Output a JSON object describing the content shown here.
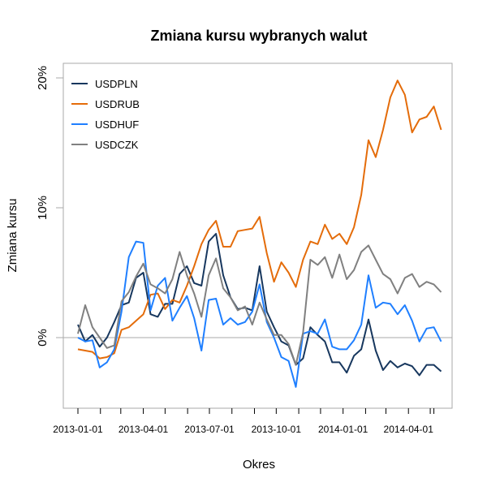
{
  "chart_data": {
    "type": "line",
    "title": "Zmiana kursu wybranych walut",
    "xlabel": "Okres",
    "ylabel": "Zmiana kursu",
    "x_unit": "days since 2013-01-01",
    "x_start_date": "2013-01-01",
    "x_step_days": 10,
    "ylim": [
      -5.4,
      21.1
    ],
    "y_ticks": [
      0,
      10,
      20
    ],
    "y_tick_labels": [
      "0%",
      "10%",
      "20%"
    ],
    "x_tick_days": [
      0,
      31,
      59,
      90,
      120,
      151,
      181,
      212,
      243,
      273,
      304,
      334,
      365,
      396,
      424,
      455,
      485,
      490
    ],
    "x_labels": [
      {
        "day": 0,
        "label": "2013-01-01"
      },
      {
        "day": 90,
        "label": "2013-04-01"
      },
      {
        "day": 181,
        "label": "2013-07-01"
      },
      {
        "day": 273,
        "label": "2013-10-01"
      },
      {
        "day": 365,
        "label": "2014-01-01"
      },
      {
        "day": 455,
        "label": "2014-04-01"
      }
    ],
    "reference_line": 0,
    "legend_position": "top-left",
    "series": [
      {
        "name": "USDPLN",
        "color": "#17375e",
        "values": [
          1.0,
          -0.3,
          0.2,
          -0.7,
          0.0,
          1.2,
          2.5,
          2.7,
          4.6,
          5.0,
          1.8,
          1.6,
          2.6,
          2.6,
          4.9,
          5.5,
          4.2,
          4.0,
          7.4,
          8.0,
          4.8,
          3.1,
          2.2,
          2.3,
          2.1,
          5.5,
          2.0,
          0.8,
          -0.3,
          -0.6,
          -2.1,
          -1.6,
          0.8,
          0.2,
          -0.3,
          -1.9,
          -1.9,
          -2.7,
          -1.4,
          -0.9,
          1.4,
          -1.0,
          -2.5,
          -1.8,
          -2.3,
          -2.0,
          -2.2,
          -2.9,
          -2.1,
          -2.1,
          -2.6
        ]
      },
      {
        "name": "USDRUB",
        "color": "#e46c0a",
        "values": [
          -0.9,
          -1.0,
          -1.1,
          -1.6,
          -1.5,
          -1.2,
          0.6,
          0.8,
          1.3,
          1.8,
          3.3,
          3.4,
          2.2,
          2.9,
          2.7,
          4.0,
          5.5,
          7.2,
          8.3,
          9.0,
          7.0,
          7.0,
          8.2,
          8.3,
          8.4,
          9.3,
          6.5,
          4.3,
          5.8,
          5.0,
          3.9,
          6.0,
          7.4,
          7.2,
          8.7,
          7.6,
          8.0,
          7.2,
          8.5,
          11.0,
          15.2,
          13.9,
          16.0,
          18.5,
          19.8,
          18.7,
          15.8,
          16.8,
          17.0,
          17.8,
          16.0
        ]
      },
      {
        "name": "USDHUF",
        "color": "#1f7fff",
        "values": [
          0.0,
          -0.3,
          -0.2,
          -2.3,
          -1.9,
          -0.9,
          2.0,
          6.2,
          7.4,
          7.3,
          2.1,
          4.0,
          4.6,
          1.3,
          2.3,
          3.2,
          1.5,
          -1.0,
          2.9,
          3.0,
          1.0,
          1.5,
          1.0,
          1.2,
          2.0,
          4.1,
          1.2,
          0.0,
          -1.5,
          -1.8,
          -3.8,
          0.3,
          0.5,
          0.3,
          1.4,
          -0.7,
          -0.9,
          -0.9,
          -0.2,
          1.0,
          4.8,
          2.3,
          2.7,
          2.6,
          1.8,
          2.5,
          1.3,
          -0.3,
          0.7,
          0.8,
          -0.3
        ]
      },
      {
        "name": "USDCZK",
        "color": "#808080",
        "values": [
          0.3,
          2.5,
          0.8,
          0.0,
          -0.8,
          -0.6,
          2.8,
          3.5,
          4.7,
          5.7,
          4.1,
          3.8,
          3.4,
          4.5,
          6.6,
          4.8,
          3.4,
          1.6,
          4.8,
          6.1,
          3.8,
          3.1,
          2.1,
          2.4,
          1.0,
          2.7,
          1.4,
          0.2,
          0.2,
          -0.5,
          -2.1,
          0.4,
          6.0,
          5.6,
          6.2,
          4.6,
          6.4,
          4.5,
          5.2,
          6.6,
          7.1,
          6.0,
          4.9,
          4.5,
          3.4,
          4.6,
          4.9,
          3.9,
          4.3,
          4.1,
          3.5
        ]
      }
    ]
  }
}
